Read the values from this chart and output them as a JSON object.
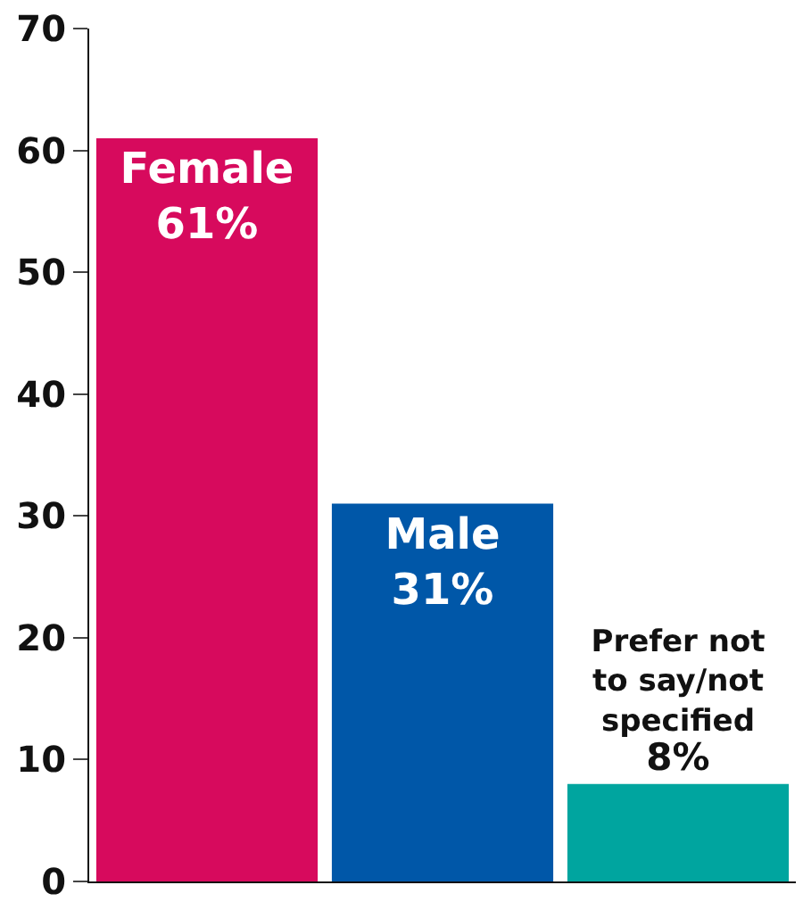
{
  "chart_data": {
    "type": "bar",
    "categories": [
      "Female",
      "Male",
      "Prefer not to say/not specified"
    ],
    "values": [
      61,
      31,
      8
    ],
    "value_labels": [
      "61%",
      "31%",
      "8%"
    ],
    "colors": [
      "#d70a5d",
      "#0057a8",
      "#00a59f"
    ],
    "ylim": [
      0,
      70
    ],
    "yticks": [
      0,
      10,
      20,
      30,
      40,
      50,
      60,
      70
    ],
    "grid": false,
    "tick_labels": "y"
  }
}
